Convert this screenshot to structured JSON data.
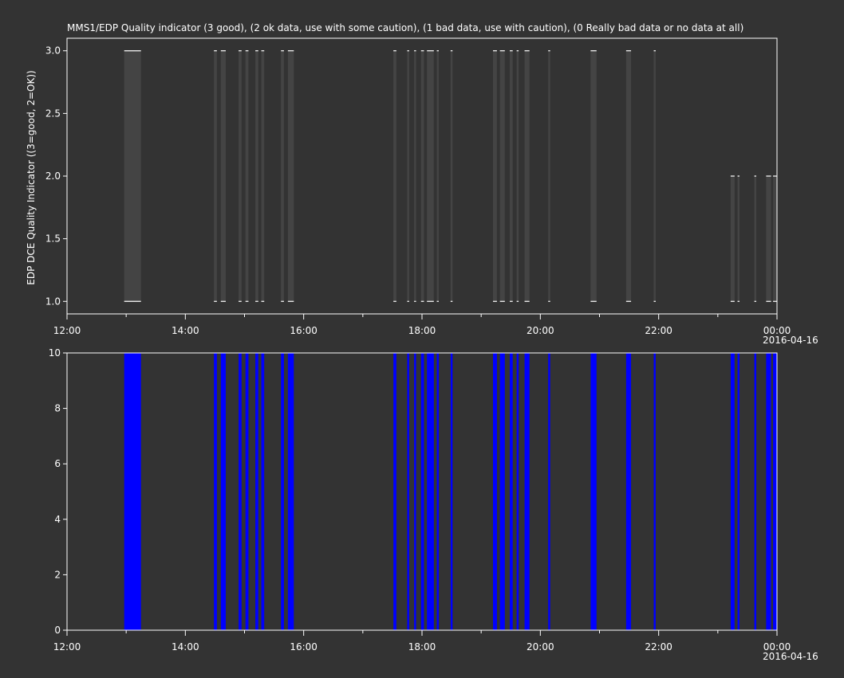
{
  "chart_data": [
    {
      "type": "bar",
      "title": "MMS1/EDP  Quality indicator (3 good), (2 ok data, use with some caution), (1 bad data, use with caution), (0 Really bad data or no data at all)",
      "ylabel": "EDP DCE Quality Indicator ((3=good, 2=OK))",
      "xlabel": "",
      "xlim": [
        "12:00",
        "00:00"
      ],
      "ylim": [
        0.9,
        3.1
      ],
      "x_ticks": [
        "12:00",
        "14:00",
        "16:00",
        "18:00",
        "20:00",
        "22:00",
        "00:00"
      ],
      "x_date_label": "2016-04-16",
      "y_ticks": [
        "1.0",
        "1.5",
        "2.0",
        "2.5",
        "3.0"
      ],
      "grid": false,
      "colors": {
        "background": "#333333",
        "axes": "#ffffff",
        "bar": "#444444",
        "marker": "#ffffff"
      },
      "segments": [
        {
          "start": "12:58",
          "end": "13:15",
          "low": 1.0,
          "high": 3.0
        },
        {
          "start": "14:29",
          "end": "14:32",
          "low": 1.0,
          "high": 3.0
        },
        {
          "start": "14:36",
          "end": "14:41",
          "low": 1.0,
          "high": 3.0
        },
        {
          "start": "14:54",
          "end": "14:57",
          "low": 1.0,
          "high": 3.0
        },
        {
          "start": "15:01",
          "end": "15:04",
          "low": 1.0,
          "high": 3.0
        },
        {
          "start": "15:11",
          "end": "15:14",
          "low": 1.0,
          "high": 3.0
        },
        {
          "start": "15:17",
          "end": "15:20",
          "low": 1.0,
          "high": 3.0
        },
        {
          "start": "15:37",
          "end": "15:40",
          "low": 1.0,
          "high": 3.0
        },
        {
          "start": "15:44",
          "end": "15:50",
          "low": 1.0,
          "high": 3.0
        },
        {
          "start": "17:31",
          "end": "17:34",
          "low": 1.0,
          "high": 3.0
        },
        {
          "start": "17:45",
          "end": "17:47",
          "low": 1.0,
          "high": 3.0
        },
        {
          "start": "17:52",
          "end": "17:54",
          "low": 1.0,
          "high": 3.0
        },
        {
          "start": "17:59",
          "end": "18:02",
          "low": 1.0,
          "high": 3.0
        },
        {
          "start": "18:05",
          "end": "18:12",
          "low": 1.0,
          "high": 3.0
        },
        {
          "start": "18:15",
          "end": "18:17",
          "low": 1.0,
          "high": 3.0
        },
        {
          "start": "18:29",
          "end": "18:31",
          "low": 1.0,
          "high": 3.0
        },
        {
          "start": "19:12",
          "end": "19:16",
          "low": 1.0,
          "high": 3.0
        },
        {
          "start": "19:19",
          "end": "19:24",
          "low": 1.0,
          "high": 3.0
        },
        {
          "start": "19:29",
          "end": "19:32",
          "low": 1.0,
          "high": 3.0
        },
        {
          "start": "19:36",
          "end": "19:38",
          "low": 1.0,
          "high": 3.0
        },
        {
          "start": "19:44",
          "end": "19:49",
          "low": 1.0,
          "high": 3.0
        },
        {
          "start": "20:08",
          "end": "20:10",
          "low": 1.0,
          "high": 3.0
        },
        {
          "start": "20:51",
          "end": "20:57",
          "low": 1.0,
          "high": 3.0
        },
        {
          "start": "21:27",
          "end": "21:32",
          "low": 1.0,
          "high": 3.0
        },
        {
          "start": "21:55",
          "end": "21:57",
          "low": 1.0,
          "high": 3.0
        },
        {
          "start": "23:13",
          "end": "23:17",
          "low": 1.0,
          "high": 2.0
        },
        {
          "start": "23:20",
          "end": "23:22",
          "low": 1.0,
          "high": 2.0
        },
        {
          "start": "23:37",
          "end": "23:39",
          "low": 1.0,
          "high": 2.0
        },
        {
          "start": "23:49",
          "end": "23:54",
          "low": 1.0,
          "high": 2.0
        },
        {
          "start": "23:56",
          "end": "24:00",
          "low": 1.0,
          "high": 2.0
        }
      ]
    },
    {
      "type": "bar",
      "title": "",
      "ylabel": "",
      "xlabel": "",
      "xlim": [
        "12:00",
        "00:00"
      ],
      "ylim": [
        0,
        10
      ],
      "x_ticks": [
        "12:00",
        "14:00",
        "16:00",
        "18:00",
        "20:00",
        "22:00",
        "00:00"
      ],
      "x_date_label": "2016-04-16",
      "y_ticks": [
        "0",
        "2",
        "4",
        "6",
        "8",
        "10"
      ],
      "grid": false,
      "colors": {
        "background": "#333333",
        "axes": "#ffffff",
        "bar": "#0000ff"
      },
      "segments": [
        {
          "start": "12:58",
          "end": "13:15",
          "value": 10
        },
        {
          "start": "14:29",
          "end": "14:32",
          "value": 10
        },
        {
          "start": "14:36",
          "end": "14:41",
          "value": 10
        },
        {
          "start": "14:54",
          "end": "14:57",
          "value": 10
        },
        {
          "start": "15:01",
          "end": "15:04",
          "value": 10
        },
        {
          "start": "15:11",
          "end": "15:14",
          "value": 10
        },
        {
          "start": "15:17",
          "end": "15:20",
          "value": 10
        },
        {
          "start": "15:37",
          "end": "15:40",
          "value": 10
        },
        {
          "start": "15:44",
          "end": "15:50",
          "value": 10
        },
        {
          "start": "17:31",
          "end": "17:34",
          "value": 10
        },
        {
          "start": "17:45",
          "end": "17:47",
          "value": 10
        },
        {
          "start": "17:52",
          "end": "17:54",
          "value": 10
        },
        {
          "start": "17:59",
          "end": "18:02",
          "value": 10
        },
        {
          "start": "18:05",
          "end": "18:12",
          "value": 10
        },
        {
          "start": "18:15",
          "end": "18:17",
          "value": 10
        },
        {
          "start": "18:29",
          "end": "18:31",
          "value": 10
        },
        {
          "start": "19:12",
          "end": "19:16",
          "value": 10
        },
        {
          "start": "19:19",
          "end": "19:24",
          "value": 10
        },
        {
          "start": "19:29",
          "end": "19:32",
          "value": 10
        },
        {
          "start": "19:36",
          "end": "19:38",
          "value": 10
        },
        {
          "start": "19:44",
          "end": "19:49",
          "value": 10
        },
        {
          "start": "20:08",
          "end": "20:10",
          "value": 10
        },
        {
          "start": "20:51",
          "end": "20:57",
          "value": 10
        },
        {
          "start": "21:27",
          "end": "21:32",
          "value": 10
        },
        {
          "start": "21:55",
          "end": "21:57",
          "value": 10
        },
        {
          "start": "23:13",
          "end": "23:17",
          "value": 10
        },
        {
          "start": "23:20",
          "end": "23:22",
          "value": 10
        },
        {
          "start": "23:37",
          "end": "23:39",
          "value": 10
        },
        {
          "start": "23:49",
          "end": "23:54",
          "value": 10
        },
        {
          "start": "23:56",
          "end": "24:00",
          "value": 10
        }
      ]
    }
  ]
}
